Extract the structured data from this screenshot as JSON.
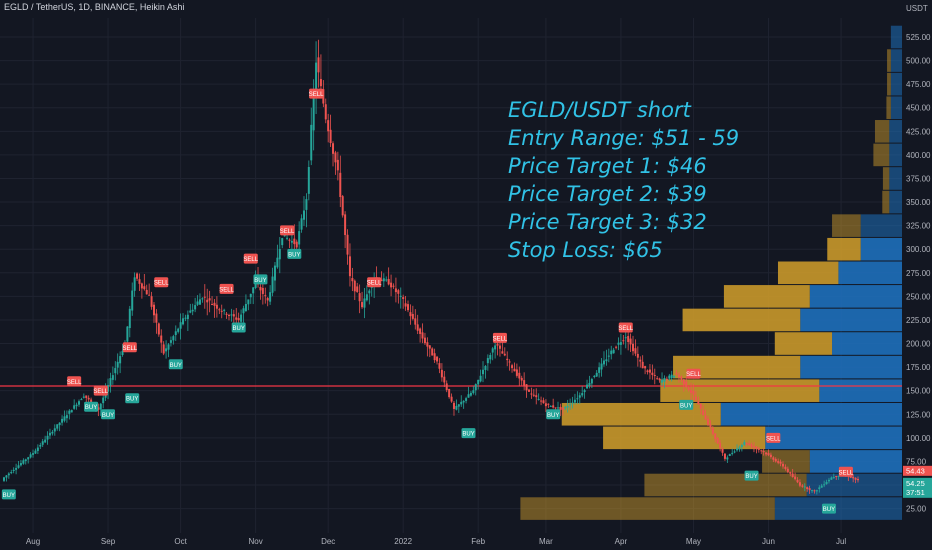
{
  "header": {
    "symbol_line": "EGLD / TetherUS, 1D, BINANCE, Heikin Ashi"
  },
  "price_axis": {
    "unit_label": "USDT",
    "ticks": [
      "525.00",
      "500.00",
      "475.00",
      "450.00",
      "425.00",
      "400.00",
      "375.00",
      "350.00",
      "325.00",
      "300.00",
      "275.00",
      "250.00",
      "225.00",
      "200.00",
      "175.00",
      "150.00",
      "125.00",
      "100.00",
      "75.00",
      "50.00",
      "25.00"
    ],
    "price_label": "54.43",
    "countdown_label_top": "54.25",
    "countdown_label_bottom": "37:51"
  },
  "time_axis": {
    "ticks": [
      "Aug",
      "Sep",
      "Oct",
      "Nov",
      "Dec",
      "2022",
      "Feb",
      "Mar",
      "Apr",
      "May",
      "Jun",
      "Jul"
    ]
  },
  "annotation": {
    "lines": [
      "EGLD/USDT short",
      "Entry Range: $51 - 59",
      "Price Target 1: $46",
      "Price Target 2: $39",
      "Price Target 3: $32",
      "Stop Loss: $65"
    ],
    "color": "#31c2e6"
  },
  "colors": {
    "background": "#131722",
    "up": "#26a69a",
    "down": "#ef5350",
    "horizontal_line": "#f23645",
    "vp_up": "#1e6fba",
    "vp_down": "#c9982a",
    "buy_label": "#26a69a",
    "sell_label": "#ef5350"
  },
  "chart_data": {
    "type": "candlestick",
    "series_style": "Heikin Ashi",
    "ylim": [
      0,
      550
    ],
    "x_ticks": [
      "Aug",
      "Sep",
      "Oct",
      "Nov",
      "Dec",
      "2022",
      "Feb",
      "Mar",
      "Apr",
      "May",
      "Jun",
      "Jul"
    ],
    "horizontal_line": 155,
    "last_price": 54.43,
    "path": [
      {
        "date": "2021-07-20",
        "price": 58
      },
      {
        "date": "2021-08-01",
        "price": 84
      },
      {
        "date": "2021-08-15",
        "price": 125
      },
      {
        "date": "2021-08-22",
        "price": 145
      },
      {
        "date": "2021-08-28",
        "price": 130
      },
      {
        "date": "2021-09-03",
        "price": 168
      },
      {
        "date": "2021-09-08",
        "price": 200
      },
      {
        "date": "2021-09-12",
        "price": 272
      },
      {
        "date": "2021-09-18",
        "price": 250
      },
      {
        "date": "2021-09-24",
        "price": 190
      },
      {
        "date": "2021-10-02",
        "price": 225
      },
      {
        "date": "2021-10-10",
        "price": 250
      },
      {
        "date": "2021-10-18",
        "price": 235
      },
      {
        "date": "2021-10-25",
        "price": 225
      },
      {
        "date": "2021-11-01",
        "price": 265
      },
      {
        "date": "2021-11-06",
        "price": 245
      },
      {
        "date": "2021-11-12",
        "price": 315
      },
      {
        "date": "2021-11-18",
        "price": 305
      },
      {
        "date": "2021-11-22",
        "price": 355
      },
      {
        "date": "2021-11-26",
        "price": 500
      },
      {
        "date": "2021-11-30",
        "price": 440
      },
      {
        "date": "2021-12-05",
        "price": 380
      },
      {
        "date": "2021-12-10",
        "price": 270
      },
      {
        "date": "2021-12-15",
        "price": 240
      },
      {
        "date": "2021-12-20",
        "price": 270
      },
      {
        "date": "2021-12-26",
        "price": 265
      },
      {
        "date": "2022-01-01",
        "price": 245
      },
      {
        "date": "2022-01-08",
        "price": 210
      },
      {
        "date": "2022-01-15",
        "price": 180
      },
      {
        "date": "2022-01-22",
        "price": 130
      },
      {
        "date": "2022-01-30",
        "price": 150
      },
      {
        "date": "2022-02-08",
        "price": 200
      },
      {
        "date": "2022-02-15",
        "price": 175
      },
      {
        "date": "2022-02-22",
        "price": 148
      },
      {
        "date": "2022-03-01",
        "price": 135
      },
      {
        "date": "2022-03-08",
        "price": 130
      },
      {
        "date": "2022-03-15",
        "price": 145
      },
      {
        "date": "2022-03-22",
        "price": 170
      },
      {
        "date": "2022-03-29",
        "price": 195
      },
      {
        "date": "2022-04-03",
        "price": 208
      },
      {
        "date": "2022-04-10",
        "price": 175
      },
      {
        "date": "2022-04-17",
        "price": 160
      },
      {
        "date": "2022-04-24",
        "price": 168
      },
      {
        "date": "2022-05-01",
        "price": 145
      },
      {
        "date": "2022-05-08",
        "price": 110
      },
      {
        "date": "2022-05-14",
        "price": 78
      },
      {
        "date": "2022-05-22",
        "price": 95
      },
      {
        "date": "2022-05-30",
        "price": 85
      },
      {
        "date": "2022-06-07",
        "price": 70
      },
      {
        "date": "2022-06-14",
        "price": 50
      },
      {
        "date": "2022-06-20",
        "price": 43
      },
      {
        "date": "2022-06-27",
        "price": 58
      },
      {
        "date": "2022-07-02",
        "price": 62
      },
      {
        "date": "2022-07-08",
        "price": 54.43
      }
    ],
    "signals": [
      {
        "date": "2021-07-22",
        "type": "BUY",
        "price": 40
      },
      {
        "date": "2021-08-18",
        "type": "SELL",
        "price": 160
      },
      {
        "date": "2021-08-25",
        "type": "BUY",
        "price": 133
      },
      {
        "date": "2021-08-29",
        "type": "SELL",
        "price": 150
      },
      {
        "date": "2021-09-01",
        "type": "BUY",
        "price": 125
      },
      {
        "date": "2021-09-10",
        "type": "SELL",
        "price": 196
      },
      {
        "date": "2021-09-11",
        "type": "BUY",
        "price": 142
      },
      {
        "date": "2021-09-23",
        "type": "SELL",
        "price": 265
      },
      {
        "date": "2021-09-29",
        "type": "BUY",
        "price": 178
      },
      {
        "date": "2021-10-20",
        "type": "SELL",
        "price": 258
      },
      {
        "date": "2021-10-25",
        "type": "BUY",
        "price": 217
      },
      {
        "date": "2021-10-30",
        "type": "SELL",
        "price": 290
      },
      {
        "date": "2021-11-03",
        "type": "BUY",
        "price": 268
      },
      {
        "date": "2021-11-14",
        "type": "SELL",
        "price": 320
      },
      {
        "date": "2021-11-17",
        "type": "BUY",
        "price": 295
      },
      {
        "date": "2021-11-26",
        "type": "SELL",
        "price": 465
      },
      {
        "date": "2021-12-20",
        "type": "SELL",
        "price": 265
      },
      {
        "date": "2022-01-28",
        "type": "BUY",
        "price": 105
      },
      {
        "date": "2022-02-10",
        "type": "SELL",
        "price": 206
      },
      {
        "date": "2022-03-04",
        "type": "BUY",
        "price": 125
      },
      {
        "date": "2022-04-03",
        "type": "SELL",
        "price": 217
      },
      {
        "date": "2022-04-28",
        "type": "BUY",
        "price": 135
      },
      {
        "date": "2022-05-01",
        "type": "SELL",
        "price": 168
      },
      {
        "date": "2022-05-25",
        "type": "BUY",
        "price": 60
      },
      {
        "date": "2022-06-03",
        "type": "SELL",
        "price": 100
      },
      {
        "date": "2022-06-26",
        "type": "BUY",
        "price": 25
      },
      {
        "date": "2022-07-03",
        "type": "SELL",
        "price": 64
      }
    ],
    "volume_profile": [
      {
        "price": 525,
        "up": 0.035,
        "down": 0.0
      },
      {
        "price": 500,
        "up": 0.035,
        "down": 0.012
      },
      {
        "price": 475,
        "up": 0.035,
        "down": 0.012
      },
      {
        "price": 450,
        "up": 0.035,
        "down": 0.014
      },
      {
        "price": 425,
        "up": 0.04,
        "down": 0.045
      },
      {
        "price": 400,
        "up": 0.04,
        "down": 0.05
      },
      {
        "price": 375,
        "up": 0.04,
        "down": 0.02
      },
      {
        "price": 350,
        "up": 0.04,
        "down": 0.022
      },
      {
        "price": 325,
        "up": 0.13,
        "down": 0.09
      },
      {
        "price": 300,
        "up": 0.13,
        "down": 0.105
      },
      {
        "price": 275,
        "up": 0.2,
        "down": 0.19
      },
      {
        "price": 250,
        "up": 0.29,
        "down": 0.27
      },
      {
        "price": 225,
        "up": 0.32,
        "down": 0.37
      },
      {
        "price": 200,
        "up": 0.22,
        "down": 0.18
      },
      {
        "price": 175,
        "up": 0.32,
        "down": 0.4
      },
      {
        "price": 150,
        "up": 0.26,
        "down": 0.5
      },
      {
        "price": 125,
        "up": 0.57,
        "down": 0.5
      },
      {
        "price": 100,
        "up": 0.43,
        "down": 0.51
      },
      {
        "price": 75,
        "up": 0.29,
        "down": 0.15
      },
      {
        "price": 50,
        "up": 0.3,
        "down": 0.51
      },
      {
        "price": 25,
        "up": 0.4,
        "down": 0.8
      }
    ]
  }
}
